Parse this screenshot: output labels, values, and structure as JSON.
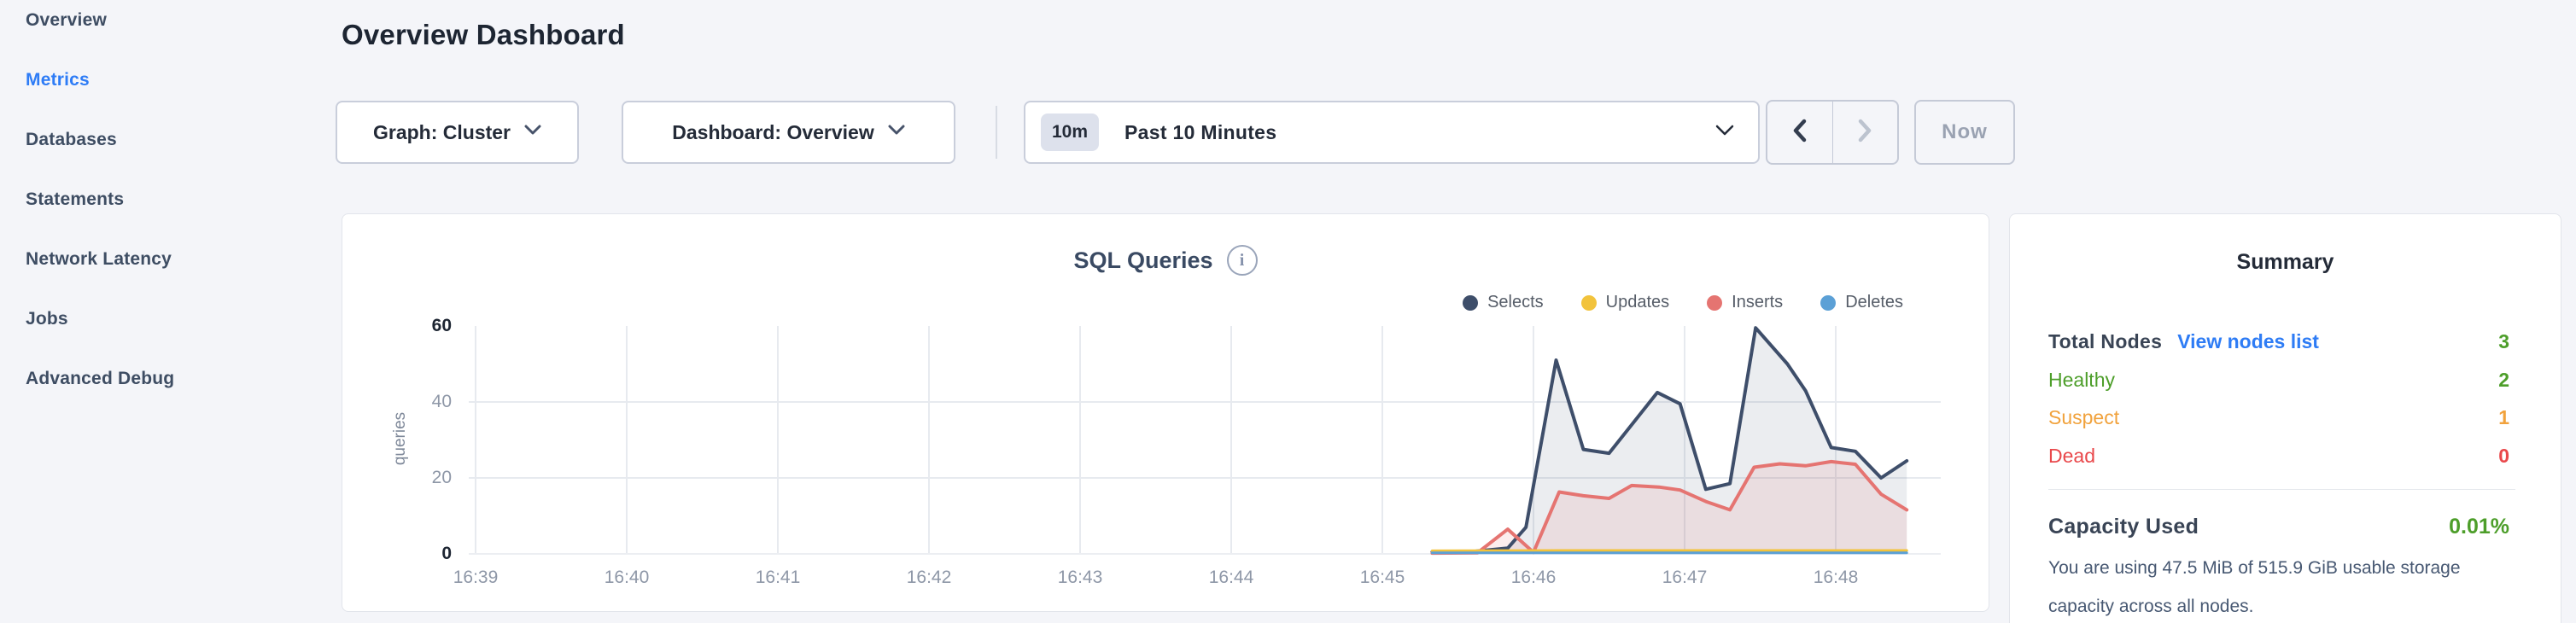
{
  "sidebar": {
    "items": [
      {
        "label": "Overview",
        "active": false
      },
      {
        "label": "Metrics",
        "active": true
      },
      {
        "label": "Databases",
        "active": false
      },
      {
        "label": "Statements",
        "active": false
      },
      {
        "label": "Network Latency",
        "active": false
      },
      {
        "label": "Jobs",
        "active": false
      },
      {
        "label": "Advanced Debug",
        "active": false
      }
    ],
    "active_color": "#2e7cf6"
  },
  "header": {
    "title": "Overview Dashboard",
    "graph_dropdown": "Graph: Cluster",
    "dashboard_dropdown": "Dashboard: Overview",
    "time_range_badge": "10m",
    "time_range_label": "Past 10 Minutes",
    "prev_button": "chevron-left",
    "next_button": "chevron-right",
    "now_button": "Now"
  },
  "chart_data": {
    "type": "area",
    "title": "SQL Queries",
    "ylabel": "queries",
    "xlabel": "",
    "ylim": [
      0,
      60
    ],
    "grid": true,
    "legend_position": "top-right",
    "xticks": [
      "16:39",
      "16:40",
      "16:41",
      "16:42",
      "16:43",
      "16:44",
      "16:45",
      "16:46",
      "16:47",
      "16:48"
    ],
    "yticks": [
      "0",
      "20",
      "40",
      "60"
    ],
    "x_unit": "minutes after 16:39",
    "series": [
      {
        "name": "Selects",
        "color": "#3e4e6a",
        "fill": "rgba(62,78,106,0.10)",
        "points": [
          [
            6.33,
            0.5
          ],
          [
            6.6,
            0.6
          ],
          [
            6.83,
            1.5
          ],
          [
            6.95,
            7
          ],
          [
            7.15,
            51
          ],
          [
            7.33,
            27.5
          ],
          [
            7.5,
            26.5
          ],
          [
            7.82,
            42.5
          ],
          [
            7.97,
            39.5
          ],
          [
            8.14,
            17
          ],
          [
            8.3,
            18.5
          ],
          [
            8.47,
            59.5
          ],
          [
            8.68,
            50
          ],
          [
            8.8,
            43
          ],
          [
            8.97,
            28
          ],
          [
            9.13,
            27
          ],
          [
            9.3,
            20
          ],
          [
            9.47,
            24.5
          ]
        ]
      },
      {
        "name": "Updates",
        "color": "#f2c33c",
        "fill": "none",
        "points": [
          [
            6.33,
            0.8
          ],
          [
            7.2,
            0.9
          ],
          [
            8.2,
            0.9
          ],
          [
            9.47,
            0.9
          ]
        ]
      },
      {
        "name": "Inserts",
        "color": "#e57471",
        "fill": "rgba(229,116,113,0.13)",
        "points": [
          [
            6.33,
            0.2
          ],
          [
            6.63,
            0.3
          ],
          [
            6.83,
            6.5
          ],
          [
            7.0,
            0.4
          ],
          [
            7.17,
            16.3
          ],
          [
            7.33,
            15.3
          ],
          [
            7.5,
            14.6
          ],
          [
            7.65,
            18
          ],
          [
            7.83,
            17.6
          ],
          [
            7.97,
            16.8
          ],
          [
            8.14,
            13.8
          ],
          [
            8.3,
            11.6
          ],
          [
            8.46,
            22.8
          ],
          [
            8.63,
            23.7
          ],
          [
            8.8,
            23.2
          ],
          [
            8.97,
            24.3
          ],
          [
            9.13,
            23.6
          ],
          [
            9.3,
            15.7
          ],
          [
            9.47,
            11.6
          ]
        ]
      },
      {
        "name": "Deletes",
        "color": "#5ba0d6",
        "fill": "none",
        "points": [
          [
            6.33,
            0.3
          ],
          [
            7.2,
            0.3
          ],
          [
            8.2,
            0.3
          ],
          [
            9.47,
            0.3
          ]
        ]
      }
    ]
  },
  "summary": {
    "title": "Summary",
    "total_nodes_label": "Total Nodes",
    "view_nodes_link": "View nodes list",
    "total_nodes_value": "3",
    "rows": [
      {
        "label": "Healthy",
        "value": "2",
        "color": "#4d9e2a"
      },
      {
        "label": "Suspect",
        "value": "1",
        "color": "#f1a23c"
      },
      {
        "label": "Dead",
        "value": "0",
        "color": "#e9484b"
      }
    ],
    "capacity_label": "Capacity Used",
    "capacity_value": "0.01%",
    "capacity_description": "You are using 47.5 MiB of 515.9 GiB usable storage capacity across all nodes."
  }
}
